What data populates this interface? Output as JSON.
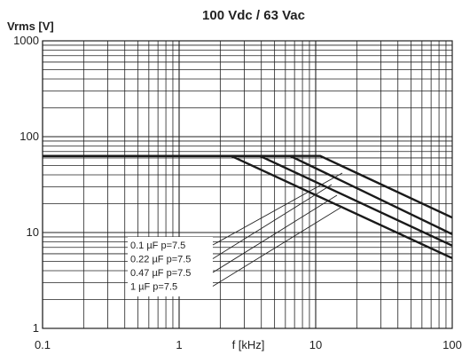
{
  "chart_data": {
    "type": "line",
    "title": "100 Vdc / 63 Vac",
    "ylabel": "Vrms [V]",
    "xlabel": "f [kHz]",
    "x_scale": "log",
    "y_scale": "log",
    "xlim": [
      0.1,
      100
    ],
    "ylim": [
      1,
      1000
    ],
    "x_ticks": [
      "0.1",
      "1",
      "10",
      "100"
    ],
    "y_ticks": [
      "1",
      "10",
      "100",
      "1000"
    ],
    "grid": true,
    "legend_position": "lower-left",
    "series": [
      {
        "name": "0.1   µF p=7.5",
        "x": [
          0.1,
          10.8,
          100
        ],
        "y": [
          63,
          63,
          14.3
        ]
      },
      {
        "name": "0.22  µF p=7.5",
        "x": [
          0.1,
          6.5,
          100
        ],
        "y": [
          63,
          63,
          9.6
        ]
      },
      {
        "name": "0.47  µF p=7.5",
        "x": [
          0.1,
          3.9,
          100
        ],
        "y": [
          63,
          63,
          7.3
        ]
      },
      {
        "name": "1       µF p=7.5",
        "x": [
          0.1,
          2.4,
          100
        ],
        "y": [
          63,
          63,
          5.4
        ]
      }
    ]
  }
}
